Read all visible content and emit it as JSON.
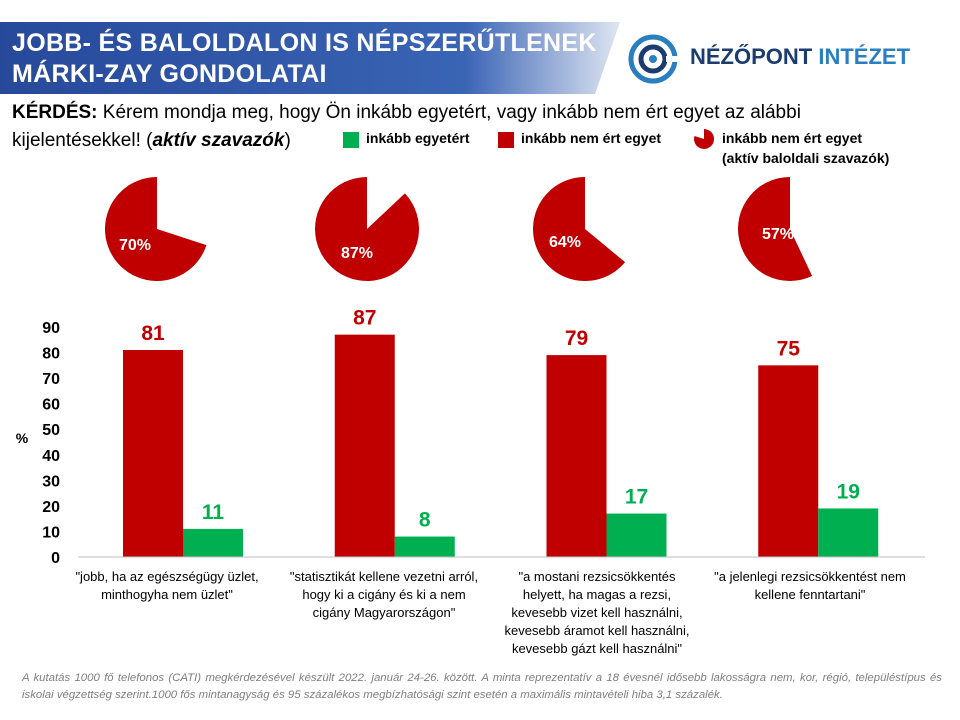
{
  "header": {
    "title_line1": "JOBB- ÉS BALOLDALON IS NÉPSZERŰTLENEK",
    "title_line2": "MÁRKI-ZAY GONDOLATAI"
  },
  "logo": {
    "part1": "NÉZŐPONT ",
    "part2": "INTÉZET",
    "icon": "target-icon"
  },
  "question": {
    "label": "KÉRDÉS:",
    "text1": " Kérem mondja meg, hogy Ön inkább egyetért, vagy inkább nem ért egyet az alábbi kijelentésekkel!  (",
    "emph": "aktív szavazók",
    "text2": ")"
  },
  "legend": {
    "agree": "inkább egyetért",
    "disagree": "inkább nem ért egyet",
    "pie_line1": "inkább nem ért egyet",
    "pie_line2": "(aktív baloldali szavazók)"
  },
  "colors": {
    "red": "#c00000",
    "green": "#00b050",
    "banner": "#2f55a0"
  },
  "chart_data": {
    "type": "bar",
    "categories": [
      "\"jobb, ha az egészségügy üzlet, minthogyha nem üzlet\"",
      "\"statisztikát kellene vezetni arról, hogy ki a cigány és ki a nem cigány Magyarországon\"",
      "\"a mostani rezsicsökkentés helyett, ha magas a rezsi, kevesebb vizet kell használni, kevesebb áramot kell használni, kevesebb gázt kell használni\"",
      "\"a jelenlegi rezsicsökkentést nem kellene fenntartani\""
    ],
    "series": [
      {
        "name": "inkább nem ért egyet",
        "values": [
          81,
          87,
          79,
          75
        ],
        "color": "#c00000"
      },
      {
        "name": "inkább egyetért",
        "values": [
          11,
          8,
          17,
          19
        ],
        "color": "#00b050"
      }
    ],
    "ylabel": "%",
    "ylim": [
      0,
      90
    ],
    "yticks": [
      0,
      10,
      20,
      30,
      40,
      50,
      60,
      70,
      80,
      90
    ],
    "pies": {
      "name": "inkább nem ért egyet (aktív baloldali szavazók)",
      "values": [
        70,
        87,
        64,
        57
      ],
      "labels": [
        "70%",
        "87%",
        "64%",
        "57%"
      ]
    }
  },
  "footnote": "A kutatás 1000 fő telefonos (CATI) megkérdezésével készült 2022. január 24-26. között. A minta reprezentatív a 18 évesnél idősebb lakosságra nem, kor, régió, településtípus és iskolai végzettség szerint.1000 fős mintanagyság és 95 százalékos megbízhatósági szint esetén a maximális mintavételi hiba 3,1 százalék."
}
